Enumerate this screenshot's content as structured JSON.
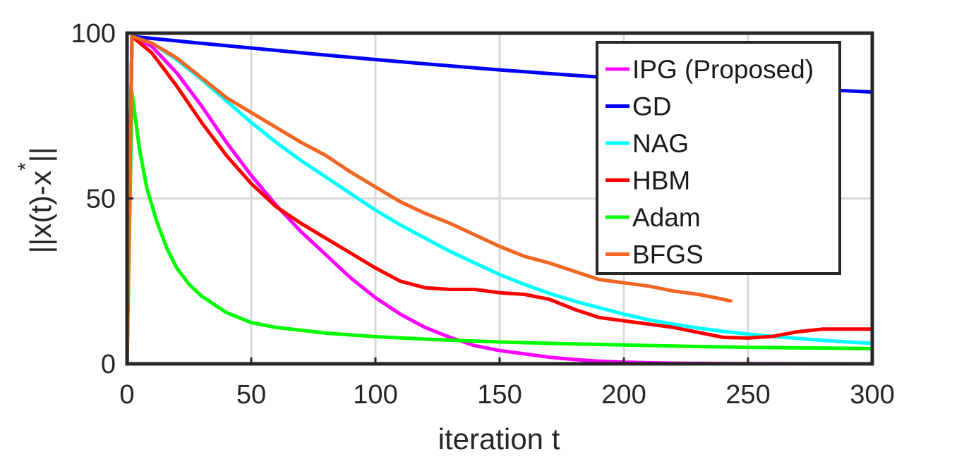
{
  "chart_data": {
    "type": "line",
    "title": "",
    "xlabel": "iteration t",
    "ylabel": "||x(t)-x",
    "ylabel_superscript": "*",
    "ylabel_suffix": "||",
    "xlim": [
      0,
      300
    ],
    "ylim": [
      0,
      100
    ],
    "xticks": [
      0,
      50,
      100,
      150,
      200,
      250,
      300
    ],
    "yticks": [
      0,
      50,
      100
    ],
    "grid": true,
    "legend_position": "top-right",
    "series": [
      {
        "name": "IPG (Proposed)",
        "color": "#ff00ff",
        "x": [
          0,
          2,
          10,
          20,
          30,
          40,
          50,
          60,
          70,
          80,
          90,
          100,
          110,
          120,
          130,
          140,
          150,
          160,
          170,
          180,
          190,
          200,
          220,
          250,
          300
        ],
        "y": [
          0,
          99,
          96,
          88,
          78,
          67,
          57,
          48,
          40,
          33,
          26,
          20,
          15,
          11,
          8,
          5.5,
          4,
          3,
          2,
          1.3,
          0.8,
          0.5,
          0.2,
          0.05,
          0.01
        ]
      },
      {
        "name": "GD",
        "color": "#0000ff",
        "x": [
          0,
          2,
          25,
          50,
          75,
          100,
          125,
          150,
          175,
          200,
          225,
          250,
          275,
          300
        ],
        "y": [
          0,
          99,
          97.3,
          95.5,
          93.7,
          92,
          90.4,
          88.9,
          87.5,
          86.2,
          85,
          84,
          83.1,
          82.2
        ]
      },
      {
        "name": "NAG",
        "color": "#00ffff",
        "x": [
          0,
          2,
          10,
          20,
          30,
          40,
          50,
          60,
          70,
          80,
          90,
          100,
          110,
          120,
          130,
          140,
          150,
          160,
          170,
          180,
          190,
          200,
          210,
          220,
          230,
          240,
          250,
          260,
          270,
          280,
          290,
          300
        ],
        "y": [
          0,
          99,
          97,
          92,
          86,
          79.5,
          73,
          67,
          61.5,
          56.5,
          51.5,
          46.5,
          42,
          38,
          34,
          30.5,
          27,
          24,
          21.3,
          19,
          17,
          15,
          13.3,
          12,
          10.8,
          9.8,
          9,
          8.3,
          7.7,
          7.1,
          6.6,
          6.2
        ]
      },
      {
        "name": "HBM",
        "color": "#ff0000",
        "x": [
          0,
          2,
          10,
          20,
          30,
          40,
          50,
          60,
          70,
          80,
          90,
          100,
          110,
          120,
          130,
          140,
          150,
          160,
          170,
          180,
          190,
          200,
          210,
          220,
          230,
          240,
          250,
          260,
          270,
          280,
          290,
          300
        ],
        "y": [
          0,
          99,
          94,
          84,
          73,
          63,
          54.5,
          47.5,
          42.5,
          38,
          33.5,
          29,
          25,
          23,
          22.5,
          22.5,
          21.5,
          21,
          19.5,
          16.5,
          14,
          13,
          12,
          11,
          9.5,
          8,
          7.8,
          8.3,
          9.7,
          10.5,
          10.5,
          10.5
        ]
      },
      {
        "name": "Adam",
        "color": "#00ff00",
        "x": [
          0,
          2,
          5,
          8,
          12,
          16,
          20,
          25,
          30,
          40,
          50,
          60,
          80,
          100,
          125,
          150,
          175,
          200,
          225,
          250,
          275,
          300
        ],
        "y": [
          0,
          82,
          65,
          53,
          43,
          35,
          29,
          24,
          20.5,
          15.5,
          12.5,
          11,
          9.3,
          8.2,
          7.3,
          6.6,
          6.1,
          5.7,
          5.3,
          5,
          4.8,
          4.6
        ]
      },
      {
        "name": "BFGS",
        "color": "#f26522",
        "x": [
          0,
          2,
          10,
          20,
          30,
          40,
          50,
          60,
          70,
          80,
          90,
          100,
          110,
          120,
          130,
          140,
          150,
          160,
          170,
          180,
          190,
          200,
          210,
          220,
          230,
          240,
          243
        ],
        "y": [
          0,
          99,
          97,
          92.5,
          86.5,
          80.5,
          76,
          71.5,
          67,
          63,
          58,
          53.5,
          49,
          45.5,
          42.5,
          39,
          35.5,
          32.5,
          30.5,
          28,
          25.5,
          24.5,
          23.5,
          22,
          21,
          19.5,
          19
        ]
      }
    ]
  }
}
